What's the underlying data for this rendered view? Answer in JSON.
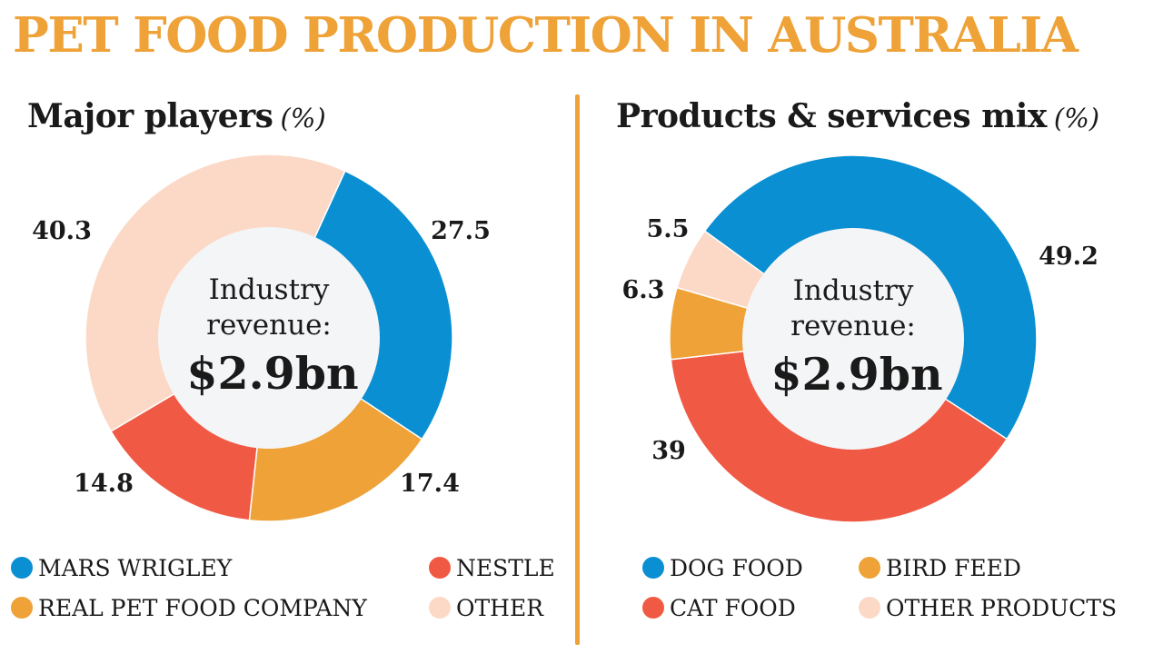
{
  "title": "PET FOOD PRODUCTION IN AUSTRALIA",
  "colors": {
    "accent": "#eea237",
    "blue": "#0a8fd2",
    "orange": "#eea237",
    "red": "#f05a45",
    "peach": "#fbd9c6",
    "center": "#f4f5f7"
  },
  "chart_data": [
    {
      "type": "pie",
      "title": "Major players",
      "unit": "(%)",
      "center_label": "Industry revenue:",
      "center_label_lines": [
        "Industry",
        "revenue:"
      ],
      "center_value": "$2.9bn",
      "slices": [
        {
          "name": "MARS WRIGLEY",
          "value": 27.5,
          "label": "27.5",
          "color": "#0a8fd2"
        },
        {
          "name": "REAL PET FOOD COMPANY",
          "value": 17.4,
          "label": "17.4",
          "color": "#eea237"
        },
        {
          "name": "NESTLE",
          "value": 14.8,
          "label": "14.8",
          "color": "#f05a45"
        },
        {
          "name": "OTHER",
          "value": 40.3,
          "label": "40.3",
          "color": "#fbd9c6"
        }
      ],
      "legend": [
        "MARS WRIGLEY",
        "NESTLE",
        "REAL PET FOOD COMPANY",
        "OTHER"
      ]
    },
    {
      "type": "pie",
      "title": "Products & services mix",
      "unit": "(%)",
      "center_label": "Industry revenue:",
      "center_label_lines": [
        "Industry",
        "revenue:"
      ],
      "center_value": "$2.9bn",
      "slices": [
        {
          "name": "DOG FOOD",
          "value": 49.2,
          "label": "49.2",
          "color": "#0a8fd2"
        },
        {
          "name": "CAT FOOD",
          "value": 39,
          "label": "39",
          "color": "#f05a45"
        },
        {
          "name": "BIRD FEED",
          "value": 6.3,
          "label": "6.3",
          "color": "#eea237"
        },
        {
          "name": "OTHER PRODUCTS",
          "value": 5.5,
          "label": "5.5",
          "color": "#fbd9c6"
        }
      ],
      "legend": [
        "DOG FOOD",
        "BIRD FEED",
        "CAT FOOD",
        "OTHER PRODUCTS"
      ]
    }
  ]
}
